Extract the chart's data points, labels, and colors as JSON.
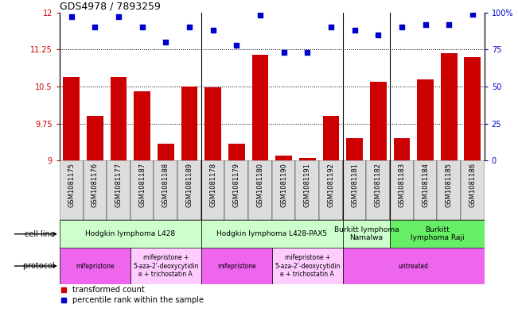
{
  "title": "GDS4978 / 7893259",
  "samples": [
    "GSM1081175",
    "GSM1081176",
    "GSM1081177",
    "GSM1081187",
    "GSM1081188",
    "GSM1081189",
    "GSM1081178",
    "GSM1081179",
    "GSM1081180",
    "GSM1081190",
    "GSM1081191",
    "GSM1081192",
    "GSM1081181",
    "GSM1081182",
    "GSM1081183",
    "GSM1081184",
    "GSM1081185",
    "GSM1081186"
  ],
  "bar_values": [
    10.7,
    9.9,
    10.7,
    10.4,
    9.35,
    10.5,
    10.48,
    9.35,
    11.15,
    9.1,
    9.05,
    9.9,
    9.45,
    10.6,
    9.45,
    10.65,
    11.18,
    11.1
  ],
  "dot_values": [
    97,
    90,
    97,
    90,
    80,
    90,
    88,
    78,
    98,
    73,
    73,
    90,
    88,
    85,
    90,
    92,
    92,
    99
  ],
  "bar_color": "#cc0000",
  "dot_color": "#0000cc",
  "ylim_left": [
    9,
    12
  ],
  "ylim_right": [
    0,
    100
  ],
  "yticks_left": [
    9,
    9.75,
    10.5,
    11.25,
    12
  ],
  "ytick_labels_left": [
    "9",
    "9.75",
    "10.5",
    "11.25",
    "12"
  ],
  "yticks_right": [
    0,
    25,
    50,
    75,
    100
  ],
  "ytick_labels_right": [
    "0",
    "25",
    "50",
    "75",
    "100%"
  ],
  "hlines": [
    9.75,
    10.5,
    11.25
  ],
  "cell_line_groups": [
    {
      "label": "Hodgkin lymphoma L428",
      "start": 0,
      "end": 5,
      "color": "#ccffcc"
    },
    {
      "label": "Hodgkin lymphoma L428-PAX5",
      "start": 6,
      "end": 11,
      "color": "#ccffcc"
    },
    {
      "label": "Burkitt lymphoma\nNamalwa",
      "start": 12,
      "end": 13,
      "color": "#ccffcc"
    },
    {
      "label": "Burkitt\nlymphoma Raji",
      "start": 14,
      "end": 17,
      "color": "#66ee66"
    }
  ],
  "protocol_groups": [
    {
      "label": "mifepristone",
      "start": 0,
      "end": 2,
      "color": "#ee66ee"
    },
    {
      "label": "mifepristone +\n5-aza-2'-deoxycytidin\ne + trichostatin A",
      "start": 3,
      "end": 5,
      "color": "#ffccff"
    },
    {
      "label": "mifepristone",
      "start": 6,
      "end": 8,
      "color": "#ee66ee"
    },
    {
      "label": "mifepristone +\n5-aza-2'-deoxycytidin\ne + trichostatin A",
      "start": 9,
      "end": 11,
      "color": "#ffccff"
    },
    {
      "label": "untreated",
      "start": 12,
      "end": 17,
      "color": "#ee66ee"
    }
  ],
  "legend_bar_label": "transformed count",
  "legend_dot_label": "percentile rank within the sample",
  "cell_line_label": "cell line",
  "protocol_label": "protocol",
  "group_separators": [
    5.5,
    11.5,
    13.5
  ],
  "xtick_bg_color": "#dddddd"
}
